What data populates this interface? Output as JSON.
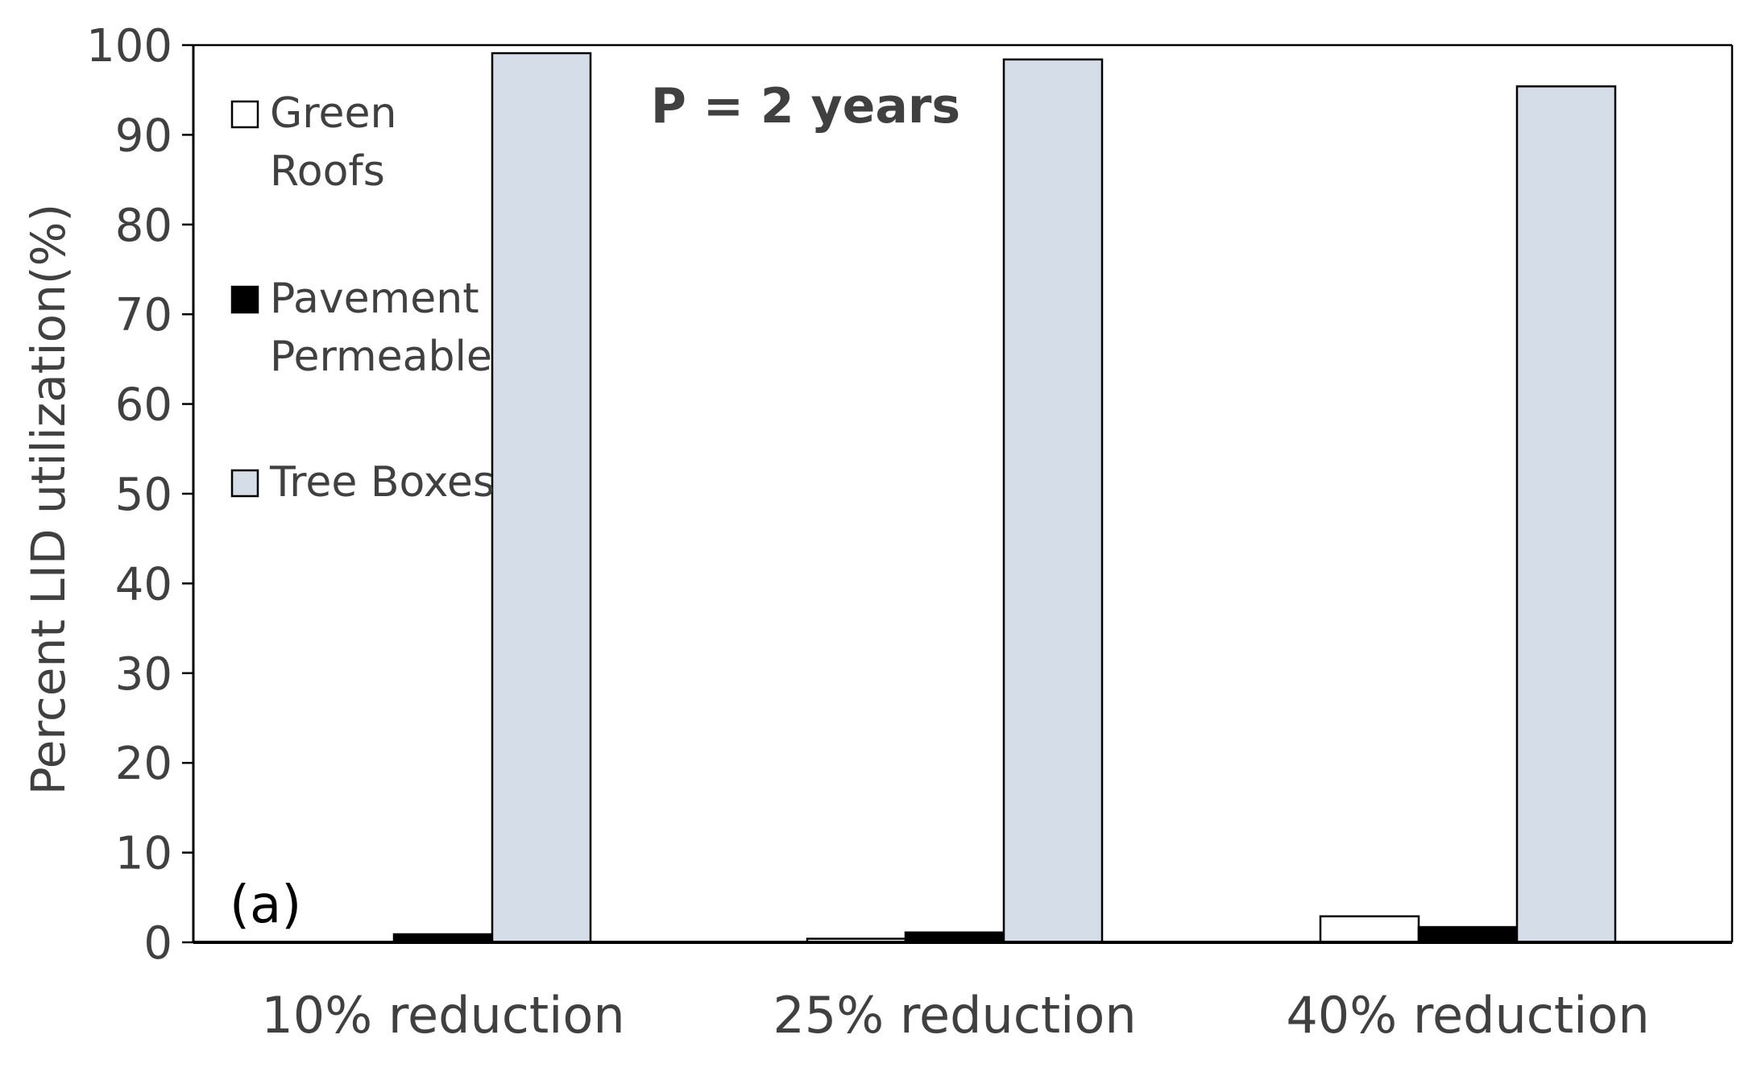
{
  "chart_data": {
    "type": "bar",
    "title": "P = 2 years",
    "panel_label": "(a)",
    "ylabel": "Percent LID utilization(%)",
    "xlabel": "",
    "ylim": [
      0,
      100
    ],
    "yticks": [
      0,
      10,
      20,
      30,
      40,
      50,
      60,
      70,
      80,
      90,
      100
    ],
    "categories": [
      "10% reduction",
      "25% reduction",
      "40% reduction"
    ],
    "series": [
      {
        "name": "Green Roofs",
        "legend_lines": [
          "Green",
          "Roofs"
        ],
        "color": "#ffffff",
        "values": [
          0,
          0.4,
          2.9
        ]
      },
      {
        "name": "Pavement Permeable",
        "legend_lines": [
          "Pavement",
          "Permeable"
        ],
        "color": "#000000",
        "values": [
          0.9,
          1.1,
          1.7
        ]
      },
      {
        "name": "Tree Boxes",
        "legend_lines": [
          "Tree Boxes"
        ],
        "color": "#d5dde8",
        "values": [
          99.1,
          98.4,
          95.4
        ]
      }
    ],
    "grid": false,
    "legend_position": "top-left"
  },
  "colors": {
    "axis": "#000000",
    "text": "#404040",
    "title": "#404040",
    "bar_stroke": "#000000"
  }
}
